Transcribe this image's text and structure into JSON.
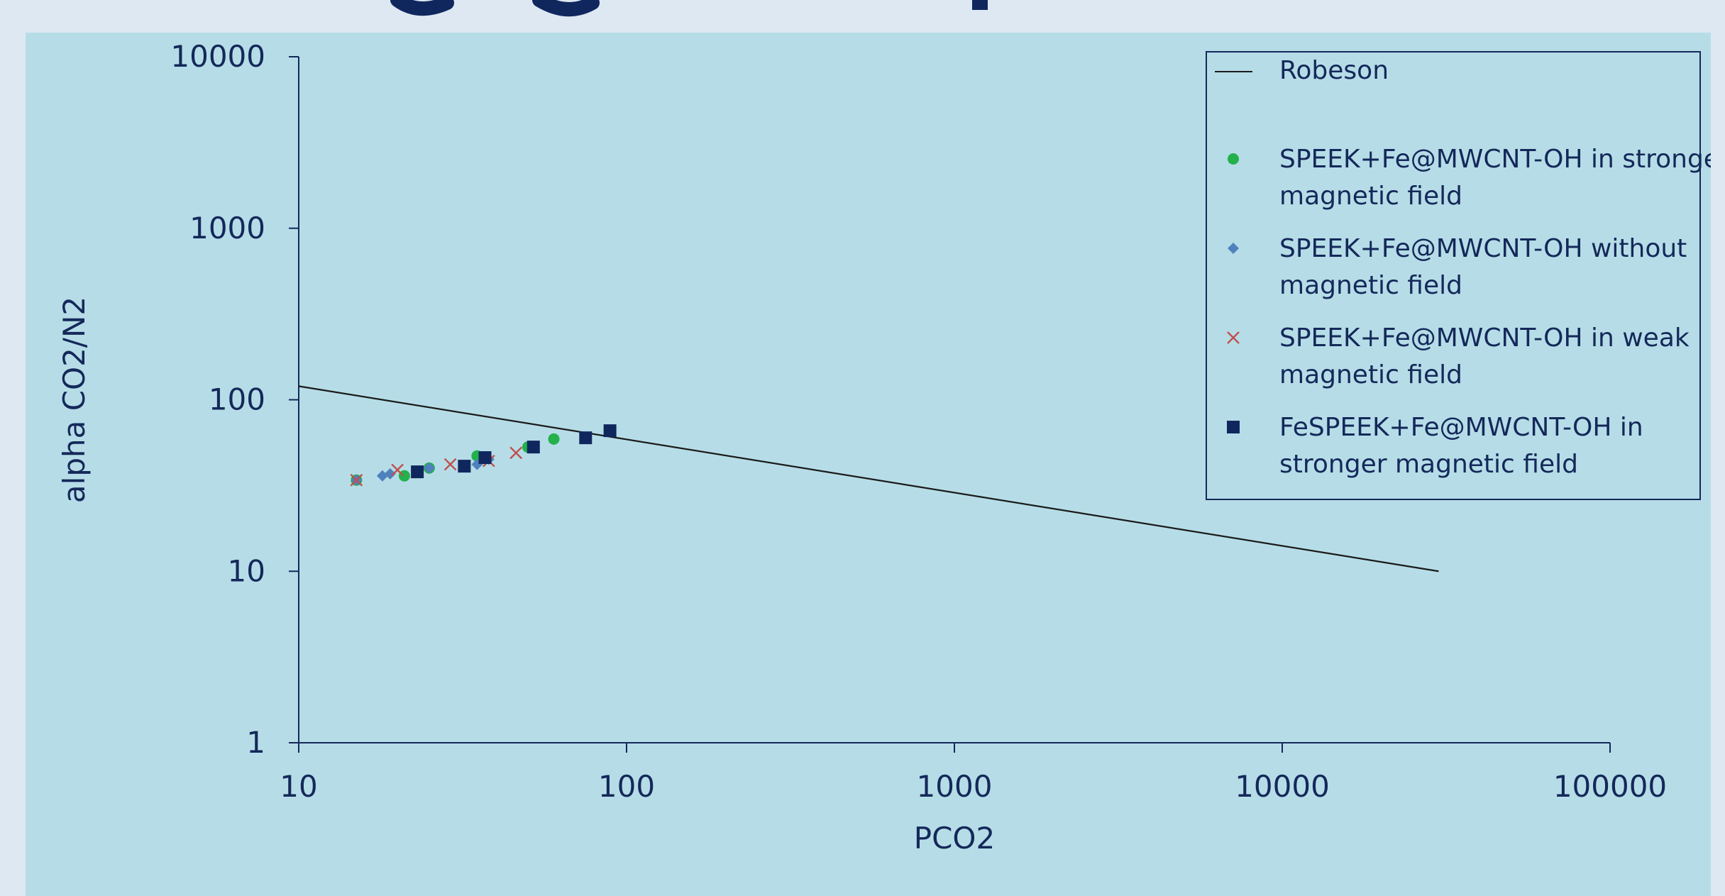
{
  "colors": {
    "page_bg": "#dde8f2",
    "chart_bg": "#b6dde7",
    "axis": "#14285a",
    "text": "#14285a",
    "robeson_line": "#1a1a1a",
    "strong_field": "#22b14c",
    "without_field": "#4f81bd",
    "weak_field": "#c0504d",
    "fespeek_strong": "#10275e"
  },
  "chart_data": {
    "type": "scatter",
    "title": "",
    "xlabel": "PCO2",
    "ylabel": "alpha CO2/N2",
    "xscale": "log",
    "yscale": "log",
    "xlim": [
      10,
      100000
    ],
    "ylim": [
      1,
      10000
    ],
    "xticks": [
      "10",
      "100",
      "1000",
      "10000",
      "100000"
    ],
    "yticks": [
      "1",
      "10",
      "100",
      "1000",
      "10000"
    ],
    "grid": false,
    "legend_position": "top-right",
    "series": [
      {
        "name": "Robeson",
        "kind": "line",
        "color": "#1a1a1a",
        "x": [
          10,
          30000
        ],
        "y": [
          120,
          10
        ]
      },
      {
        "name": "SPEEK+Fe@MWCNT-OH in stronger magnetic field",
        "kind": "scatter",
        "marker": "circle",
        "color": "#22b14c",
        "x": [
          15,
          21,
          25,
          35,
          50,
          60
        ],
        "y": [
          34,
          36,
          40,
          47,
          53,
          59
        ]
      },
      {
        "name": "SPEEK+Fe@MWCNT-OH without magnetic field",
        "kind": "scatter",
        "marker": "diamond",
        "color": "#4f81bd",
        "x": [
          15,
          18,
          19,
          25,
          35,
          38
        ],
        "y": [
          34,
          36,
          37,
          40,
          42,
          45
        ]
      },
      {
        "name": "SPEEK+Fe@MWCNT-OH in weak magnetic field",
        "kind": "scatter",
        "marker": "x",
        "color": "#c0504d",
        "x": [
          15,
          20,
          29,
          38,
          46
        ],
        "y": [
          34,
          39,
          42,
          44,
          49
        ]
      },
      {
        "name": "FeSPEEK+Fe@MWCNT-OH in stronger magnetic field",
        "kind": "scatter",
        "marker": "square",
        "color": "#10275e",
        "x": [
          23,
          32,
          37,
          52,
          75,
          89
        ],
        "y": [
          38,
          41,
          46,
          53,
          60,
          66
        ]
      }
    ],
    "legend": [
      {
        "marker": "line",
        "color": "#1a1a1a",
        "lines": [
          "Robeson"
        ]
      },
      {
        "marker": "circle",
        "color": "#22b14c",
        "lines": [
          "SPEEK+Fe@MWCNT-OH in stronger",
          "magnetic field"
        ]
      },
      {
        "marker": "diamond",
        "color": "#4f81bd",
        "lines": [
          "SPEEK+Fe@MWCNT-OH without",
          "magnetic field"
        ]
      },
      {
        "marker": "x",
        "color": "#c0504d",
        "lines": [
          "SPEEK+Fe@MWCNT-OH in weak",
          "magnetic field"
        ]
      },
      {
        "marker": "square",
        "color": "#10275e",
        "lines": [
          "FeSPEEK+Fe@MWCNT-OH in",
          "stronger magnetic field"
        ]
      }
    ]
  }
}
